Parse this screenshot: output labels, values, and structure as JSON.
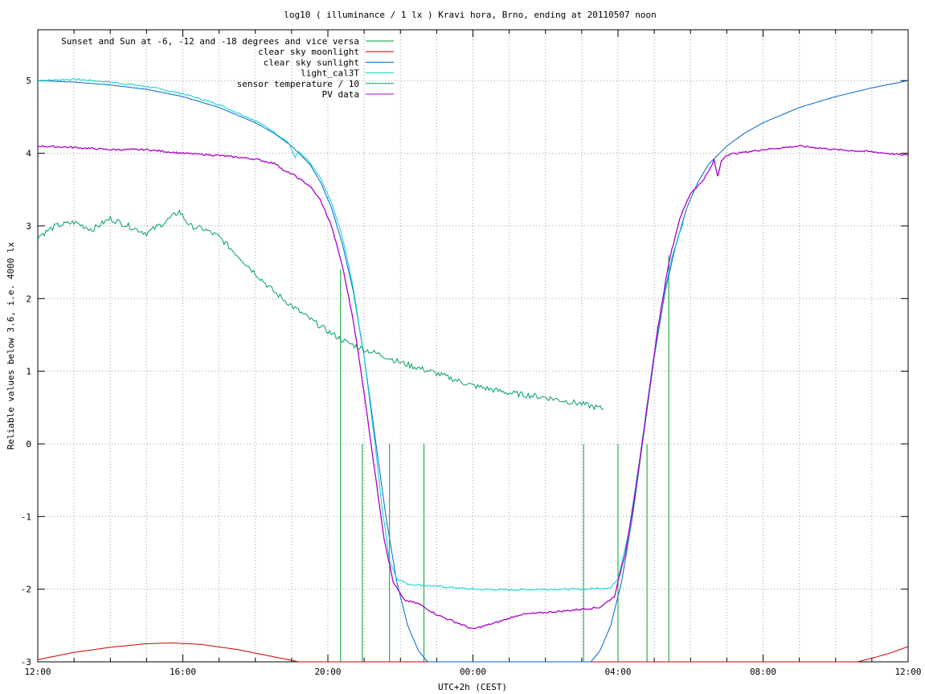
{
  "chart_data": {
    "type": "line",
    "title": "log10 ( illuminance / 1 lx ) Kravi hora, Brno, ending at 20110507 noon",
    "xlabel": "UTC+2h (CEST)",
    "ylabel": "Reliable values below 3.6, i.e. 4000 lx",
    "xlim": [
      12,
      36
    ],
    "ylim": [
      -3,
      5.7
    ],
    "grid": true,
    "legend_position": "top-left",
    "x_ticks": [
      {
        "value": 12,
        "label": "12:00"
      },
      {
        "value": 16,
        "label": "16:00"
      },
      {
        "value": 20,
        "label": "20:00"
      },
      {
        "value": 24,
        "label": "00:00"
      },
      {
        "value": 28,
        "label": "04:00"
      },
      {
        "value": 32,
        "label": "08:00"
      },
      {
        "value": 36,
        "label": "12:00"
      }
    ],
    "y_ticks": [
      {
        "value": 5,
        "label": "5"
      },
      {
        "value": 4,
        "label": "4"
      },
      {
        "value": 3,
        "label": "3"
      },
      {
        "value": 2,
        "label": "2"
      },
      {
        "value": 1,
        "label": "1"
      },
      {
        "value": 0,
        "label": "0"
      },
      {
        "value": -1,
        "label": "-1"
      },
      {
        "value": -2,
        "label": "-2"
      },
      {
        "value": -3,
        "label": "-3"
      }
    ],
    "x_minor_step": 1,
    "series": [
      {
        "name": "Sunset and Sun at -6, -12 and -18 degrees and vice versa",
        "color": "#00a030",
        "kind": "impulses",
        "impulses": [
          {
            "x": 20.35,
            "y": 2.4
          },
          {
            "x": 20.95,
            "y": 0
          },
          {
            "x": 21.7,
            "y": 0
          },
          {
            "x": 22.65,
            "y": 0
          },
          {
            "x": 27.05,
            "y": 0
          },
          {
            "x": 28.0,
            "y": 0
          },
          {
            "x": 28.8,
            "y": 0
          },
          {
            "x": 29.4,
            "y": 2.6
          }
        ]
      },
      {
        "name": "clear sky moonlight",
        "color": "#cc0000",
        "points": [
          [
            12,
            -2.97
          ],
          [
            13,
            -2.87
          ],
          [
            14,
            -2.8
          ],
          [
            15,
            -2.75
          ],
          [
            15.7,
            -2.74
          ],
          [
            16.5,
            -2.76
          ],
          [
            17.5,
            -2.83
          ],
          [
            18.5,
            -2.93
          ],
          [
            19.2,
            -3.0
          ],
          [
            34.6,
            -3.0
          ],
          [
            35,
            -2.95
          ],
          [
            35.5,
            -2.88
          ],
          [
            36,
            -2.79
          ]
        ]
      },
      {
        "name": "clear sky sunlight",
        "color": "#0066cc",
        "points": [
          [
            12,
            5.0
          ],
          [
            13,
            4.98
          ],
          [
            14,
            4.94
          ],
          [
            15,
            4.88
          ],
          [
            16,
            4.78
          ],
          [
            17,
            4.63
          ],
          [
            18,
            4.42
          ],
          [
            18.5,
            4.28
          ],
          [
            19,
            4.1
          ],
          [
            19.5,
            3.85
          ],
          [
            19.8,
            3.6
          ],
          [
            20.1,
            3.25
          ],
          [
            20.4,
            2.75
          ],
          [
            20.7,
            2.1
          ],
          [
            21.0,
            1.2
          ],
          [
            21.3,
            0.1
          ],
          [
            21.6,
            -1.0
          ],
          [
            21.9,
            -1.9
          ],
          [
            22.2,
            -2.5
          ],
          [
            22.5,
            -2.85
          ],
          [
            22.75,
            -3.0
          ],
          [
            27.25,
            -3.0
          ],
          [
            27.5,
            -2.85
          ],
          [
            27.8,
            -2.5
          ],
          [
            28.1,
            -1.9
          ],
          [
            28.4,
            -1.0
          ],
          [
            28.7,
            0.1
          ],
          [
            29.0,
            1.2
          ],
          [
            29.3,
            2.1
          ],
          [
            29.6,
            2.75
          ],
          [
            29.9,
            3.25
          ],
          [
            30.2,
            3.6
          ],
          [
            30.5,
            3.85
          ],
          [
            31,
            4.1
          ],
          [
            31.5,
            4.28
          ],
          [
            32,
            4.42
          ],
          [
            33,
            4.63
          ],
          [
            34,
            4.78
          ],
          [
            35,
            4.9
          ],
          [
            36,
            5.0
          ]
        ]
      },
      {
        "name": "light_cal3T",
        "color": "#00d0d0",
        "noise": 0.012,
        "points": [
          [
            12,
            5.0
          ],
          [
            13,
            5.02
          ],
          [
            14,
            4.98
          ],
          [
            15,
            4.92
          ],
          [
            16,
            4.82
          ],
          [
            17,
            4.67
          ],
          [
            18,
            4.45
          ],
          [
            18.5,
            4.3
          ],
          [
            18.9,
            4.15
          ],
          [
            19.0,
            4.05
          ],
          [
            19.1,
            3.95
          ],
          [
            19.2,
            4.02
          ],
          [
            19.5,
            3.87
          ],
          [
            19.8,
            3.65
          ],
          [
            20.1,
            3.32
          ],
          [
            20.4,
            2.85
          ],
          [
            20.7,
            2.15
          ],
          [
            21.0,
            1.2
          ],
          [
            21.3,
            0.0
          ],
          [
            21.5,
            -0.9
          ],
          [
            21.7,
            -1.6
          ],
          [
            21.9,
            -1.85
          ],
          [
            22.2,
            -1.93
          ],
          [
            23.0,
            -1.96
          ],
          [
            24.0,
            -2.0
          ],
          [
            25.0,
            -2.01
          ],
          [
            26.0,
            -2.0
          ],
          [
            27.0,
            -2.0
          ],
          [
            27.8,
            -1.98
          ],
          [
            28.0,
            -1.85
          ],
          [
            28.3,
            -1.2
          ],
          [
            28.6,
            -0.2
          ],
          [
            28.9,
            0.9
          ],
          [
            29.2,
            1.9
          ],
          [
            29.5,
            2.6
          ],
          [
            29.8,
            3.05
          ]
        ]
      },
      {
        "name": "sensor temperature / 10",
        "color": "#00a060",
        "noise": 0.04,
        "points": [
          [
            12,
            2.85
          ],
          [
            12.5,
            3.0
          ],
          [
            13,
            3.05
          ],
          [
            13.5,
            2.95
          ],
          [
            14,
            3.1
          ],
          [
            14.5,
            3.0
          ],
          [
            15,
            2.9
          ],
          [
            15.5,
            3.05
          ],
          [
            15.9,
            3.2
          ],
          [
            16.2,
            3.0
          ],
          [
            16.6,
            2.95
          ],
          [
            17,
            2.85
          ],
          [
            17.5,
            2.6
          ],
          [
            18,
            2.35
          ],
          [
            18.5,
            2.1
          ],
          [
            19,
            1.9
          ],
          [
            19.5,
            1.72
          ],
          [
            20,
            1.55
          ],
          [
            20.5,
            1.4
          ],
          [
            21,
            1.3
          ],
          [
            21.5,
            1.22
          ],
          [
            22,
            1.12
          ],
          [
            23,
            0.97
          ],
          [
            24,
            0.8
          ],
          [
            25,
            0.7
          ],
          [
            26,
            0.64
          ],
          [
            27,
            0.55
          ],
          [
            27.6,
            0.48
          ]
        ]
      },
      {
        "name": "PV data",
        "color": "#aa00cc",
        "noise": 0.012,
        "points": [
          [
            12,
            4.1
          ],
          [
            13,
            4.08
          ],
          [
            14,
            4.05
          ],
          [
            15,
            4.05
          ],
          [
            16,
            4.0
          ],
          [
            17,
            3.97
          ],
          [
            18,
            3.92
          ],
          [
            18.6,
            3.85
          ],
          [
            18.8,
            3.75
          ],
          [
            19.0,
            3.72
          ],
          [
            19.5,
            3.55
          ],
          [
            19.8,
            3.35
          ],
          [
            20.1,
            3.0
          ],
          [
            20.4,
            2.45
          ],
          [
            20.7,
            1.7
          ],
          [
            21.0,
            0.7
          ],
          [
            21.3,
            -0.4
          ],
          [
            21.55,
            -1.3
          ],
          [
            21.8,
            -1.9
          ],
          [
            22.1,
            -2.15
          ],
          [
            22.5,
            -2.2
          ],
          [
            23.0,
            -2.35
          ],
          [
            23.5,
            -2.45
          ],
          [
            24.0,
            -2.55
          ],
          [
            24.7,
            -2.45
          ],
          [
            25.3,
            -2.35
          ],
          [
            26.5,
            -2.3
          ],
          [
            27.5,
            -2.25
          ],
          [
            27.9,
            -2.1
          ],
          [
            28.2,
            -1.5
          ],
          [
            28.5,
            -0.6
          ],
          [
            28.8,
            0.5
          ],
          [
            29.1,
            1.6
          ],
          [
            29.4,
            2.5
          ],
          [
            29.7,
            3.1
          ],
          [
            30.0,
            3.45
          ],
          [
            30.3,
            3.6
          ],
          [
            30.5,
            3.75
          ],
          [
            30.65,
            3.9
          ],
          [
            30.75,
            3.68
          ],
          [
            30.85,
            3.9
          ],
          [
            31,
            3.98
          ],
          [
            32,
            4.05
          ],
          [
            33,
            4.1
          ],
          [
            34,
            4.05
          ],
          [
            35,
            4.02
          ],
          [
            36,
            3.97
          ]
        ]
      }
    ]
  }
}
